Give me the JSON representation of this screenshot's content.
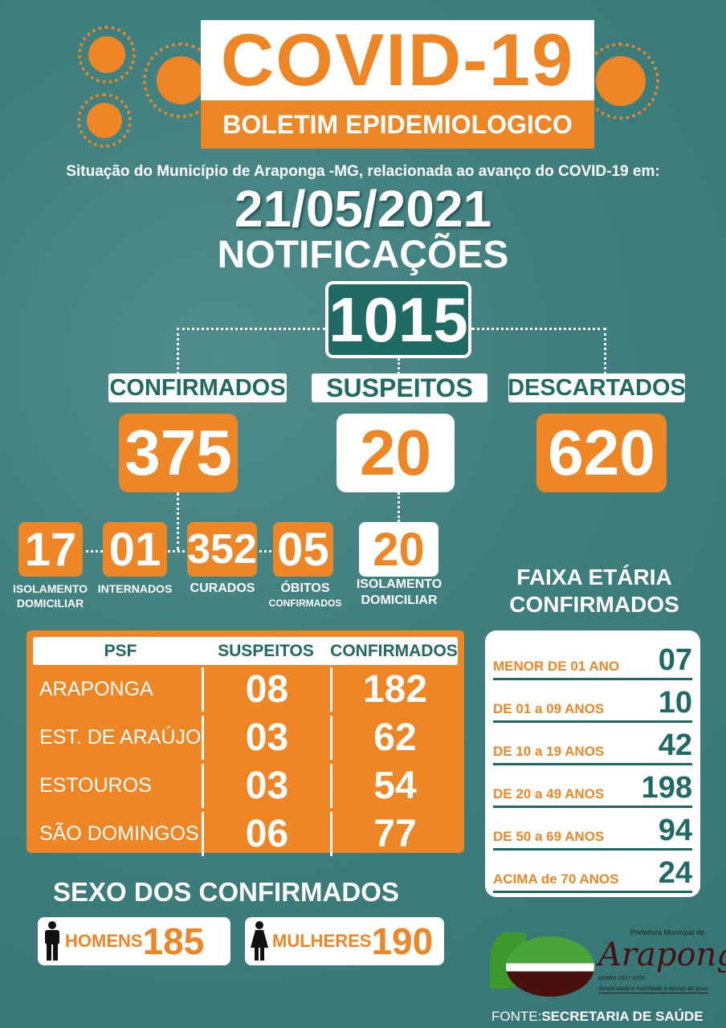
{
  "header": {
    "title": "COVID-19",
    "subtitle": "BOLETIM EPIDEMIOLOGICO"
  },
  "intro": "Situação do Município de Araponga -MG, relacionada ao avanço do COVID-19 em:",
  "date": "21/05/2021",
  "notificacoes": {
    "label": "NOTIFICAÇÕES",
    "total": "1015"
  },
  "categories": [
    {
      "label": "CONFIRMADOS",
      "value": "375"
    },
    {
      "label": "SUSPEITOS",
      "value": "20"
    },
    {
      "label": "DESCARTADOS",
      "value": "620"
    }
  ],
  "breakdown": [
    {
      "value": "17",
      "label1": "ISOLAMENTO",
      "label2": "DOMICILIAR"
    },
    {
      "value": "01",
      "label1": "INTERNADOS",
      "label2": ""
    },
    {
      "value": "352",
      "label1": "CURADOS",
      "label2": ""
    },
    {
      "value": "05",
      "label1": "ÓBITOS",
      "label2": "CONFIRMADOS"
    },
    {
      "value": "20",
      "label1": "ISOLAMENTO",
      "label2": "DOMICILIAR"
    }
  ],
  "psf_table": {
    "headers": [
      "PSF",
      "SUSPEITOS",
      "CONFIRMADOS"
    ],
    "rows": [
      [
        "ARAPONGA",
        "08",
        "182"
      ],
      [
        "EST. DE ARAÚJO",
        "03",
        "62"
      ],
      [
        "ESTOUROS",
        "03",
        "54"
      ],
      [
        "SÃO DOMINGOS",
        "06",
        "77"
      ]
    ]
  },
  "faixa": {
    "title1": "FAIXA ETÁRIA",
    "title2": "CONFIRMADOS",
    "rows": [
      [
        "MENOR DE 01 ANO",
        "07"
      ],
      [
        "DE 01 a 09 ANOS",
        "10"
      ],
      [
        "DE 10 a 19 ANOS",
        "42"
      ],
      [
        "DE 20 a 49 ANOS",
        "198"
      ],
      [
        "DE 50 a 69 ANOS",
        "94"
      ],
      [
        "ACIMA de 70 ANOS",
        "24"
      ]
    ]
  },
  "sexo": {
    "title": "SEXO DOS CONFIRMADOS",
    "men_label": "HOMENS",
    "men": "185",
    "women_label": "MULHERES",
    "women": "190"
  },
  "logo": {
    "text1": "Prefeitura Municipal de",
    "text2": "Araponga",
    "text3": "ADMIN 2017-2020",
    "text4": "Simplicidade e humildade à serviço do povo"
  },
  "fonte": {
    "prefix": "FONTE:",
    "source": "SECRETARIA DE SAÚDE"
  },
  "colors": {
    "orange": "#ef8626",
    "teal": "#3f7f7d",
    "dark_teal": "#1f6a62"
  }
}
